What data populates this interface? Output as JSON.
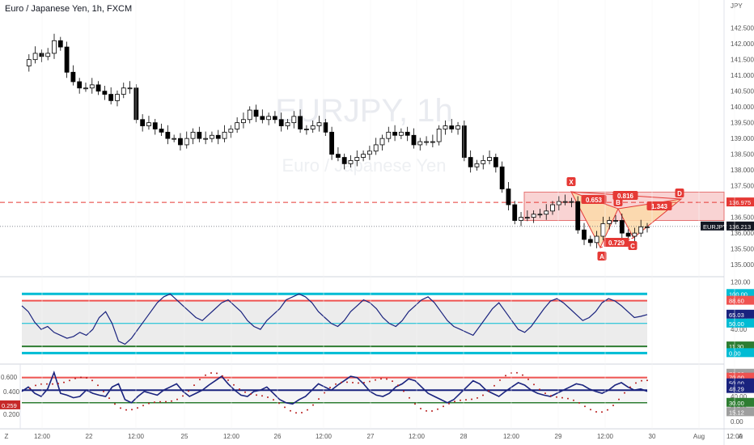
{
  "symbol_title": "Euro / Japanese Yen, 1h, FXCM",
  "currency_label": "JPY",
  "watermark": {
    "ticker": "EURJPY, 1h",
    "name": "Euro / Japanese Yen"
  },
  "price_axis_ticks": [
    "142.500",
    "142.000",
    "141.500",
    "141.000",
    "140.500",
    "140.000",
    "139.500",
    "139.000",
    "138.500",
    "138.000",
    "137.500",
    "137.000",
    "136.500",
    "136.000",
    "135.500",
    "135.000"
  ],
  "time_axis": [
    "12:00",
    "22",
    "12:00",
    "25",
    "12:00",
    "26",
    "12:00",
    "27",
    "12:00",
    "28",
    "12:00",
    "29",
    "12:00",
    "30",
    "Aug",
    "12:00",
    "A"
  ],
  "time_axis_corner": "Z",
  "price_badges": {
    "level": "136.975",
    "symbol": "EURJPY",
    "last": "136.213",
    "level_color": "#e53935",
    "last_color": "#131722"
  },
  "pattern_labels": {
    "X": "X",
    "A": "A",
    "B": "B",
    "C": "C",
    "D": "D",
    "r1": "0.653",
    "r2": "0.816",
    "r3": "0.729",
    "r4": "1.343"
  },
  "osc1": {
    "ticks": [
      "120.00",
      "100.00",
      "88.60",
      "60.00",
      "65.03",
      "50.00",
      "40.00",
      "11.30",
      "0.00"
    ],
    "badges": [
      {
        "t": "100.00",
        "c": "#00bcd4"
      },
      {
        "t": "88.60",
        "c": "#ef5350"
      },
      {
        "t": "65.03",
        "c": "#1a237e"
      },
      {
        "t": "50.00",
        "c": "#00bcd4"
      },
      {
        "t": "11.30",
        "c": "#2e7d32"
      },
      {
        "t": "0.00",
        "c": "#00bcd4"
      }
    ]
  },
  "osc2": {
    "left_ticks": [
      "0.600",
      "0.400",
      "0.200"
    ],
    "left_badge": "0.259",
    "right_ticks": [
      "80.00",
      "60.00",
      "40.00",
      "20.00",
      "0.00"
    ],
    "badges": [
      {
        "t": "76.26",
        "c": "#9e9e9e"
      },
      {
        "t": "70.00",
        "c": "#ef5350"
      },
      {
        "t": "50.00",
        "c": "#1a237e"
      },
      {
        "t": "48.29",
        "c": "#1a237e"
      },
      {
        "t": "30.00",
        "c": "#2e7d32"
      },
      {
        "t": "15.12",
        "c": "#9e9e9e"
      }
    ]
  },
  "chart_data": {
    "type": "candlestick",
    "title": "Euro / Japanese Yen, 1h, FXCM",
    "ylim": [
      134.9,
      142.8
    ],
    "x_labels": [
      "12:00",
      "22",
      "12:00",
      "25",
      "12:00",
      "26",
      "12:00",
      "27",
      "12:00",
      "28",
      "12:00",
      "29",
      "12:00",
      "30",
      "Aug",
      "12:00"
    ],
    "close_path": [
      141.3,
      141.5,
      141.7,
      141.6,
      141.7,
      142.1,
      141.9,
      141.1,
      140.8,
      140.6,
      140.6,
      140.7,
      140.5,
      140.4,
      140.2,
      140.4,
      140.6,
      140.6,
      139.6,
      139.4,
      139.5,
      139.3,
      139.2,
      139.0,
      139.0,
      138.8,
      139.0,
      139.2,
      139.0,
      139.0,
      139.1,
      139.0,
      139.2,
      139.3,
      139.5,
      139.6,
      139.9,
      139.7,
      139.6,
      139.7,
      139.6,
      139.4,
      139.5,
      139.7,
      139.3,
      139.3,
      139.4,
      139.5,
      139.2,
      138.5,
      138.4,
      138.2,
      138.3,
      138.4,
      138.5,
      138.6,
      138.8,
      139.0,
      139.2,
      139.1,
      139.2,
      139.1,
      138.8,
      138.9,
      138.9,
      138.9,
      139.3,
      139.4,
      139.3,
      139.4,
      138.4,
      138.1,
      138.2,
      138.3,
      138.4,
      138.1,
      137.4,
      136.9,
      136.4,
      136.5,
      136.5,
      136.6,
      136.6,
      136.7,
      136.9,
      137.0,
      137.0,
      137.0,
      136.1,
      135.8,
      135.7,
      135.9,
      136.3,
      136.4,
      136.4,
      136.0,
      135.9,
      136.0,
      136.2,
      136.2
    ],
    "levels": {
      "resistance": 136.975,
      "last": 136.213
    },
    "zone": [
      136.4,
      137.3
    ],
    "harmonic_pattern": {
      "points": [
        "X",
        "A",
        "B",
        "C",
        "D"
      ],
      "ratios": [
        0.653,
        0.816,
        0.729,
        1.343
      ]
    },
    "oscillator_1": {
      "levels": [
        100,
        88.6,
        50,
        11.3,
        0
      ],
      "last": 65.03
    },
    "oscillator_2": {
      "levels": [
        70,
        50,
        30
      ],
      "last": 48.29,
      "left_value": 0.259
    }
  }
}
